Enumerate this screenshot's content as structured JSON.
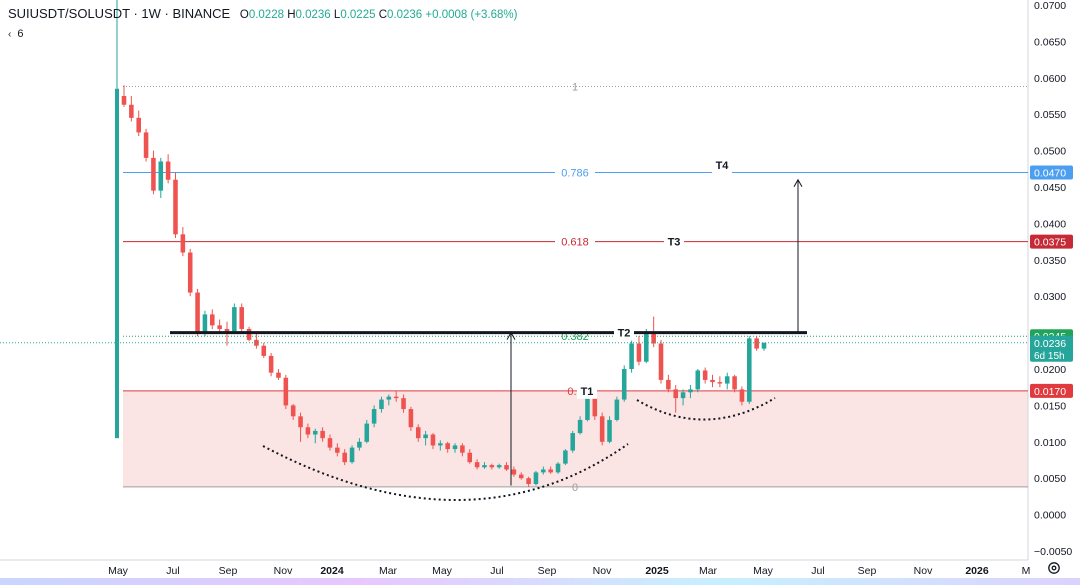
{
  "header": {
    "symbol": "SUIUSDT/SOLUSDT · 1W · BINANCE",
    "o_label": "O",
    "o_value": "0.0228",
    "h_label": "H",
    "h_value": "0.0236",
    "l_label": "L",
    "l_value": "0.0225",
    "c_label": "C",
    "c_value": "0.0236",
    "change": "+0.0008 (+3.68%)"
  },
  "indicator": {
    "chevron": "‹",
    "count": "6"
  },
  "price_axis": {
    "ticks": [
      "0.0700",
      "0.0650",
      "0.0600",
      "0.0550",
      "0.0500",
      "0.0450",
      "0.0400",
      "0.0350",
      "0.0300",
      "0.0250",
      "0.0200",
      "0.0150",
      "0.0100",
      "0.0050",
      "0.0000",
      "−0.0050"
    ],
    "badges": [
      {
        "price": 0.047,
        "label": "0.0470",
        "bg": "#4c9ff0"
      },
      {
        "price": 0.0375,
        "label": "0.0375",
        "bg": "#c62a36"
      },
      {
        "price": 0.0245,
        "label": "0.0245",
        "bg": "#22a35a"
      },
      {
        "price": 0.0236,
        "label": "0.0236",
        "bg": "#26a69a"
      },
      {
        "price": 0.017,
        "label": "0.0170",
        "bg": "#e0393e"
      }
    ],
    "countdown": "6d 15h"
  },
  "time_axis": {
    "labels": [
      "May",
      "Jul",
      "Sep",
      "Nov",
      "2024",
      "Mar",
      "May",
      "Jul",
      "Sep",
      "Nov",
      "2025",
      "Mar",
      "May",
      "Jul",
      "Sep",
      "Nov",
      "2026",
      "M"
    ],
    "bold": [
      "2024",
      "2025",
      "2026"
    ]
  },
  "fib": {
    "levels": [
      {
        "label": "1",
        "price": 0.0588,
        "color": "#9e9e9e"
      },
      {
        "label": "0.786",
        "price": 0.047,
        "color": "#4c9ff0"
      },
      {
        "label": "0.618",
        "price": 0.0375,
        "color": "#c62a36"
      },
      {
        "label": "0.382",
        "price": 0.0245,
        "color": "#22a35a"
      },
      {
        "label": "0.2",
        "price": 0.017,
        "color": "#e0393e"
      },
      {
        "label": "0",
        "price": 0.0038,
        "color": "#9e9e9e"
      }
    ]
  },
  "targets": {
    "t1": "T1",
    "t2": "T2",
    "t3": "T3",
    "t4": "T4"
  },
  "candles": [
    {
      "o": 0.0575,
      "h": 0.059,
      "l": 0.056,
      "c": 0.0563
    },
    {
      "o": 0.0563,
      "h": 0.0575,
      "l": 0.054,
      "c": 0.0545
    },
    {
      "o": 0.0545,
      "h": 0.0555,
      "l": 0.052,
      "c": 0.0525
    },
    {
      "o": 0.0525,
      "h": 0.053,
      "l": 0.0485,
      "c": 0.049
    },
    {
      "o": 0.049,
      "h": 0.05,
      "l": 0.044,
      "c": 0.0445
    },
    {
      "o": 0.0445,
      "h": 0.049,
      "l": 0.0435,
      "c": 0.0485
    },
    {
      "o": 0.0485,
      "h": 0.0495,
      "l": 0.0455,
      "c": 0.046
    },
    {
      "o": 0.046,
      "h": 0.047,
      "l": 0.038,
      "c": 0.0385
    },
    {
      "o": 0.0385,
      "h": 0.0395,
      "l": 0.0355,
      "c": 0.036
    },
    {
      "o": 0.036,
      "h": 0.0365,
      "l": 0.03,
      "c": 0.0305
    },
    {
      "o": 0.0305,
      "h": 0.031,
      "l": 0.0245,
      "c": 0.025
    },
    {
      "o": 0.025,
      "h": 0.028,
      "l": 0.0245,
      "c": 0.0275
    },
    {
      "o": 0.0275,
      "h": 0.0282,
      "l": 0.0255,
      "c": 0.026
    },
    {
      "o": 0.026,
      "h": 0.0268,
      "l": 0.025,
      "c": 0.0255
    },
    {
      "o": 0.0255,
      "h": 0.0265,
      "l": 0.0232,
      "c": 0.025
    },
    {
      "o": 0.025,
      "h": 0.029,
      "l": 0.0248,
      "c": 0.0285
    },
    {
      "o": 0.0285,
      "h": 0.029,
      "l": 0.025,
      "c": 0.0255
    },
    {
      "o": 0.0255,
      "h": 0.0258,
      "l": 0.0238,
      "c": 0.024
    },
    {
      "o": 0.024,
      "h": 0.0248,
      "l": 0.0228,
      "c": 0.0232
    },
    {
      "o": 0.0232,
      "h": 0.0236,
      "l": 0.0215,
      "c": 0.0218
    },
    {
      "o": 0.0218,
      "h": 0.0222,
      "l": 0.019,
      "c": 0.0195
    },
    {
      "o": 0.0195,
      "h": 0.02,
      "l": 0.0185,
      "c": 0.0188
    },
    {
      "o": 0.0188,
      "h": 0.0192,
      "l": 0.0145,
      "c": 0.015
    },
    {
      "o": 0.015,
      "h": 0.0152,
      "l": 0.013,
      "c": 0.0135
    },
    {
      "o": 0.0135,
      "h": 0.014,
      "l": 0.01,
      "c": 0.012
    },
    {
      "o": 0.012,
      "h": 0.0125,
      "l": 0.0105,
      "c": 0.011
    },
    {
      "o": 0.011,
      "h": 0.0118,
      "l": 0.0098,
      "c": 0.0115
    },
    {
      "o": 0.0115,
      "h": 0.012,
      "l": 0.01,
      "c": 0.0105
    },
    {
      "o": 0.0105,
      "h": 0.011,
      "l": 0.0088,
      "c": 0.0092
    },
    {
      "o": 0.0092,
      "h": 0.0098,
      "l": 0.008,
      "c": 0.0085
    },
    {
      "o": 0.0085,
      "h": 0.009,
      "l": 0.0068,
      "c": 0.0072
    },
    {
      "o": 0.0072,
      "h": 0.0095,
      "l": 0.007,
      "c": 0.0092
    },
    {
      "o": 0.0092,
      "h": 0.0105,
      "l": 0.0088,
      "c": 0.01
    },
    {
      "o": 0.01,
      "h": 0.013,
      "l": 0.0098,
      "c": 0.0125
    },
    {
      "o": 0.0125,
      "h": 0.015,
      "l": 0.012,
      "c": 0.0145
    },
    {
      "o": 0.0145,
      "h": 0.0162,
      "l": 0.014,
      "c": 0.0158
    },
    {
      "o": 0.0158,
      "h": 0.0165,
      "l": 0.015,
      "c": 0.0162
    },
    {
      "o": 0.0162,
      "h": 0.017,
      "l": 0.0155,
      "c": 0.016
    },
    {
      "o": 0.016,
      "h": 0.0165,
      "l": 0.014,
      "c": 0.0145
    },
    {
      "o": 0.0145,
      "h": 0.0148,
      "l": 0.0115,
      "c": 0.012
    },
    {
      "o": 0.012,
      "h": 0.0124,
      "l": 0.01,
      "c": 0.0105
    },
    {
      "o": 0.0105,
      "h": 0.0115,
      "l": 0.0095,
      "c": 0.011
    },
    {
      "o": 0.011,
      "h": 0.0112,
      "l": 0.009,
      "c": 0.0095
    },
    {
      "o": 0.0095,
      "h": 0.0102,
      "l": 0.0088,
      "c": 0.0098
    },
    {
      "o": 0.0098,
      "h": 0.01,
      "l": 0.0085,
      "c": 0.009
    },
    {
      "o": 0.009,
      "h": 0.0098,
      "l": 0.0085,
      "c": 0.0095
    },
    {
      "o": 0.0095,
      "h": 0.0098,
      "l": 0.008,
      "c": 0.0085
    },
    {
      "o": 0.0085,
      "h": 0.009,
      "l": 0.007,
      "c": 0.0072
    },
    {
      "o": 0.0072,
      "h": 0.0076,
      "l": 0.0062,
      "c": 0.0065
    },
    {
      "o": 0.0065,
      "h": 0.0072,
      "l": 0.0063,
      "c": 0.0068
    },
    {
      "o": 0.0068,
      "h": 0.007,
      "l": 0.0062,
      "c": 0.0065
    },
    {
      "o": 0.0065,
      "h": 0.007,
      "l": 0.0063,
      "c": 0.0068
    },
    {
      "o": 0.0068,
      "h": 0.0072,
      "l": 0.006,
      "c": 0.0062
    },
    {
      "o": 0.0062,
      "h": 0.0066,
      "l": 0.0052,
      "c": 0.0055
    },
    {
      "o": 0.0055,
      "h": 0.0058,
      "l": 0.0048,
      "c": 0.005
    },
    {
      "o": 0.005,
      "h": 0.0052,
      "l": 0.0038,
      "c": 0.0042
    },
    {
      "o": 0.0042,
      "h": 0.006,
      "l": 0.004,
      "c": 0.0058
    },
    {
      "o": 0.0058,
      "h": 0.0066,
      "l": 0.0055,
      "c": 0.0062
    },
    {
      "o": 0.0062,
      "h": 0.0066,
      "l": 0.0056,
      "c": 0.0058
    },
    {
      "o": 0.0058,
      "h": 0.0072,
      "l": 0.0056,
      "c": 0.007
    },
    {
      "o": 0.007,
      "h": 0.009,
      "l": 0.0068,
      "c": 0.0088
    },
    {
      "o": 0.0088,
      "h": 0.0115,
      "l": 0.0085,
      "c": 0.0112
    },
    {
      "o": 0.0112,
      "h": 0.0135,
      "l": 0.011,
      "c": 0.013
    },
    {
      "o": 0.013,
      "h": 0.0165,
      "l": 0.0128,
      "c": 0.016
    },
    {
      "o": 0.016,
      "h": 0.0168,
      "l": 0.013,
      "c": 0.0135
    },
    {
      "o": 0.0135,
      "h": 0.014,
      "l": 0.0095,
      "c": 0.01
    },
    {
      "o": 0.01,
      "h": 0.0135,
      "l": 0.0098,
      "c": 0.013
    },
    {
      "o": 0.013,
      "h": 0.0162,
      "l": 0.0128,
      "c": 0.0158
    },
    {
      "o": 0.0158,
      "h": 0.0205,
      "l": 0.0155,
      "c": 0.02
    },
    {
      "o": 0.02,
      "h": 0.024,
      "l": 0.0195,
      "c": 0.0235
    },
    {
      "o": 0.0235,
      "h": 0.0245,
      "l": 0.0205,
      "c": 0.021
    },
    {
      "o": 0.021,
      "h": 0.0255,
      "l": 0.0208,
      "c": 0.025
    },
    {
      "o": 0.025,
      "h": 0.0272,
      "l": 0.023,
      "c": 0.0235
    },
    {
      "o": 0.0235,
      "h": 0.024,
      "l": 0.018,
      "c": 0.0185
    },
    {
      "o": 0.0185,
      "h": 0.0192,
      "l": 0.0168,
      "c": 0.0172
    },
    {
      "o": 0.0172,
      "h": 0.0178,
      "l": 0.014,
      "c": 0.016
    },
    {
      "o": 0.016,
      "h": 0.0172,
      "l": 0.015,
      "c": 0.0168
    },
    {
      "o": 0.0168,
      "h": 0.0178,
      "l": 0.016,
      "c": 0.0172
    },
    {
      "o": 0.0172,
      "h": 0.02,
      "l": 0.0168,
      "c": 0.0198
    },
    {
      "o": 0.0198,
      "h": 0.0202,
      "l": 0.018,
      "c": 0.0185
    },
    {
      "o": 0.0185,
      "h": 0.0192,
      "l": 0.0175,
      "c": 0.0182
    },
    {
      "o": 0.0182,
      "h": 0.019,
      "l": 0.0175,
      "c": 0.018
    },
    {
      "o": 0.018,
      "h": 0.0195,
      "l": 0.0172,
      "c": 0.019
    },
    {
      "o": 0.019,
      "h": 0.0192,
      "l": 0.0168,
      "c": 0.0172
    },
    {
      "o": 0.0172,
      "h": 0.0176,
      "l": 0.015,
      "c": 0.0155
    },
    {
      "o": 0.0155,
      "h": 0.0245,
      "l": 0.0152,
      "c": 0.0242
    },
    {
      "o": 0.0242,
      "h": 0.0245,
      "l": 0.0225,
      "c": 0.0228
    },
    {
      "o": 0.0228,
      "h": 0.0236,
      "l": 0.0225,
      "c": 0.0236
    }
  ]
}
